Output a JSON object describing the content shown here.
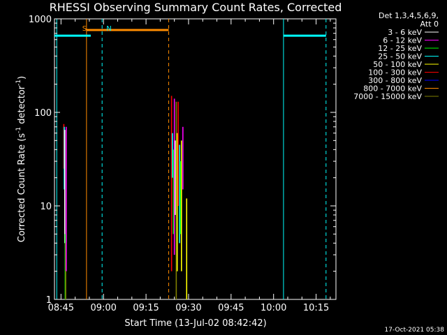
{
  "chart_data": {
    "type": "line",
    "title": "RHESSI Observing Summary Count Rates, Corrected",
    "xlabel": "Start Time (13-Jul-02 08:42:42)",
    "ylabel_main": "Corrected Count Rate (s",
    "ylabel_sup1": "-1",
    "ylabel_mid": " detector",
    "ylabel_sup2": "-1",
    "ylabel_end": ")",
    "y_scale": "log",
    "ylim": [
      1,
      1000
    ],
    "xlim": [
      "08:42:42",
      "10:22:00"
    ],
    "x_ticks": [
      "08:45",
      "09:00",
      "09:15",
      "09:30",
      "09:45",
      "10:00",
      "10:15"
    ],
    "y_ticks": [
      "1",
      "10",
      "100",
      "1000"
    ],
    "legend_header": [
      "Det 1,3,4,5,6,9,",
      "Att 0"
    ],
    "legend_position": "top-right",
    "grid": false,
    "footer": "17-Oct-2021 05:38",
    "series": [
      {
        "name": "3 - 6 keV",
        "color": "#ffffff"
      },
      {
        "name": "6 - 12 keV",
        "color": "#ff00ff"
      },
      {
        "name": "12 - 25 keV",
        "color": "#00ff00"
      },
      {
        "name": "25 - 50 keV",
        "color": "#00ffff"
      },
      {
        "name": "50 - 100 keV",
        "color": "#ffff00"
      },
      {
        "name": "100 - 300 keV",
        "color": "#ff0000"
      },
      {
        "name": "300 - 800 keV",
        "color": "#0000ff"
      },
      {
        "name": "800 - 7000 keV",
        "color": "#ff8c00"
      },
      {
        "name": "7000 - 15000 keV",
        "color": "#808000"
      }
    ],
    "flag_bars": [
      {
        "label": "",
        "color": "#00ffff",
        "y": 660,
        "segments": [
          [
            "08:42:42",
            "08:55:30"
          ],
          [
            "10:03:30",
            "10:18:30"
          ]
        ]
      },
      {
        "label": "",
        "color": "#ff8c00",
        "y": 760,
        "segments": [
          [
            "08:54:00",
            "09:23:00"
          ]
        ]
      }
    ],
    "flag_markers": [
      {
        "label": "S",
        "time": "08:52:30",
        "color": "#ff8c00"
      },
      {
        "label": "N",
        "time": "09:01:00",
        "color": "#00ffff"
      }
    ],
    "vertical_lines": [
      {
        "time": "08:43:30",
        "color": "#00ffff",
        "style": "solid"
      },
      {
        "time": "08:54:00",
        "color": "#ff8c00",
        "style": "solid"
      },
      {
        "time": "08:59:30",
        "color": "#00ffff",
        "style": "dashed"
      },
      {
        "time": "09:23:00",
        "color": "#ff8c00",
        "style": "dashed"
      },
      {
        "time": "10:03:30",
        "color": "#00ffff",
        "style": "solid"
      },
      {
        "time": "10:18:30",
        "color": "#00ffff",
        "style": "dashed"
      }
    ],
    "data_spikes": [
      {
        "time": "08:46:00",
        "ymin": 25,
        "ymax": 75,
        "color": "#ff0000"
      },
      {
        "time": "08:46:10",
        "ymin": 15,
        "ymax": 70,
        "color": "#00ffff"
      },
      {
        "time": "08:46:20",
        "ymin": 4,
        "ymax": 65,
        "color": "#ffffff"
      },
      {
        "time": "08:46:30",
        "ymin": 1,
        "ymax": 5,
        "color": "#00ff00"
      },
      {
        "time": "08:46:40",
        "ymin": 1,
        "ymax": 4,
        "color": "#808000"
      },
      {
        "time": "08:46:50",
        "ymin": 2,
        "ymax": 70,
        "color": "#ff00ff"
      },
      {
        "time": "09:24:00",
        "ymin": 2,
        "ymax": 150,
        "color": "#ff0000"
      },
      {
        "time": "09:24:20",
        "ymin": 20,
        "ymax": 60,
        "color": "#00ffff"
      },
      {
        "time": "09:24:40",
        "ymin": 5,
        "ymax": 40,
        "color": "#00ff00"
      },
      {
        "time": "09:25:00",
        "ymin": 3,
        "ymax": 140,
        "color": "#ff00ff"
      },
      {
        "time": "09:25:20",
        "ymin": 8,
        "ymax": 50,
        "color": "#ffffff"
      },
      {
        "time": "09:25:40",
        "ymin": 1,
        "ymax": 130,
        "color": "#808000"
      },
      {
        "time": "09:26:00",
        "ymin": 2,
        "ymax": 60,
        "color": "#ffff00"
      },
      {
        "time": "09:26:20",
        "ymin": 10,
        "ymax": 130,
        "color": "#ff0000"
      },
      {
        "time": "09:26:50",
        "ymin": 4,
        "ymax": 45,
        "color": "#00ffff"
      },
      {
        "time": "09:27:10",
        "ymin": 5,
        "ymax": 30,
        "color": "#00ff00"
      },
      {
        "time": "09:27:30",
        "ymin": 2,
        "ymax": 50,
        "color": "#ffff00"
      },
      {
        "time": "09:28:00",
        "ymin": 15,
        "ymax": 70,
        "color": "#ff00ff"
      },
      {
        "time": "09:29:20",
        "ymin": 1,
        "ymax": 12,
        "color": "#ffff00"
      }
    ]
  }
}
